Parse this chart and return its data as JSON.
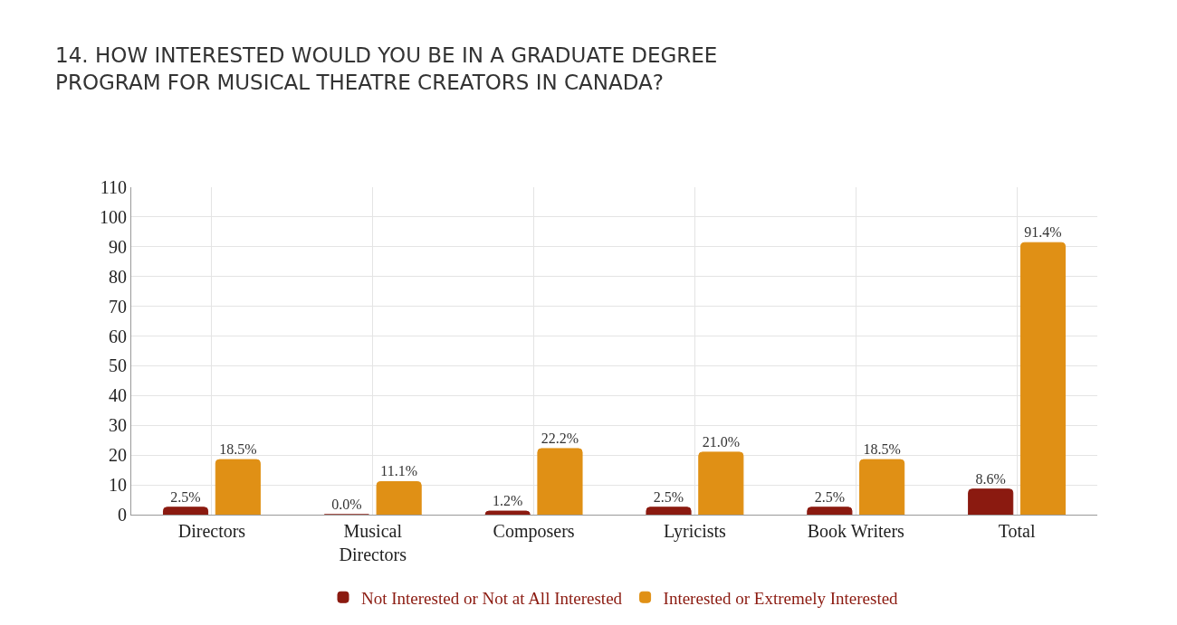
{
  "chart_data": {
    "type": "bar",
    "title": "14. HOW INTERESTED WOULD YOU BE IN A GRADUATE DEGREE\nPROGRAM FOR MUSICAL THEATRE CREATORS IN CANADA?",
    "categories": [
      "Directors",
      "Musical\nDirectors",
      "Composers",
      "Lyricists",
      "Book Writers",
      "Total"
    ],
    "series": [
      {
        "name": "Not Interested or Not at All Interested",
        "color": "#8b1a10",
        "values": [
          2.5,
          0.0,
          1.2,
          2.5,
          2.5,
          8.6
        ],
        "value_labels": [
          "2.5%",
          "0.0%",
          "1.2%",
          "2.5%",
          "2.5%",
          "8.6%"
        ]
      },
      {
        "name": "Interested or Extremely Interested",
        "color": "#e09015",
        "values": [
          18.5,
          11.1,
          22.2,
          21.0,
          18.5,
          91.4
        ],
        "value_labels": [
          "18.5%",
          "11.1%",
          "22.2%",
          "21.0%",
          "18.5%",
          "91.4%"
        ]
      }
    ],
    "ylim": [
      0,
      110
    ],
    "yticks": [
      0,
      10,
      20,
      30,
      40,
      50,
      60,
      70,
      80,
      90,
      100,
      110
    ],
    "grid": true,
    "legend": "bottom"
  }
}
